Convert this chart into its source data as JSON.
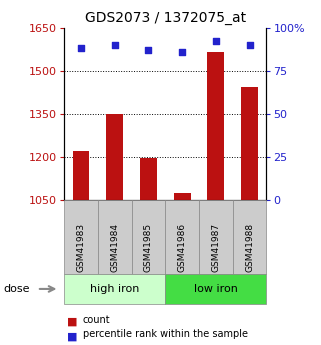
{
  "title": "GDS2073 / 1372075_at",
  "samples": [
    "GSM41983",
    "GSM41984",
    "GSM41985",
    "GSM41986",
    "GSM41987",
    "GSM41988"
  ],
  "counts": [
    1220,
    1350,
    1195,
    1075,
    1565,
    1445
  ],
  "percentiles": [
    88,
    90,
    87,
    86,
    92,
    90
  ],
  "ylim_left": [
    1050,
    1650
  ],
  "ylim_right": [
    0,
    100
  ],
  "yticks_left": [
    1050,
    1200,
    1350,
    1500,
    1650
  ],
  "yticks_right": [
    0,
    25,
    50,
    75,
    100
  ],
  "ytick_labels_right": [
    "0",
    "25",
    "50",
    "75",
    "100%"
  ],
  "bar_color": "#bb1111",
  "dot_color": "#2222cc",
  "group1_label": "high iron",
  "group2_label": "low iron",
  "group_bg_light": "#ccffcc",
  "group_bg_dark": "#44dd44",
  "sample_bg": "#cccccc",
  "legend_count_label": "count",
  "legend_pct_label": "percentile rank within the sample",
  "dose_label": "dose",
  "grid_lines": [
    1200,
    1350,
    1500
  ],
  "figsize": [
    3.21,
    3.45
  ],
  "dpi": 100
}
